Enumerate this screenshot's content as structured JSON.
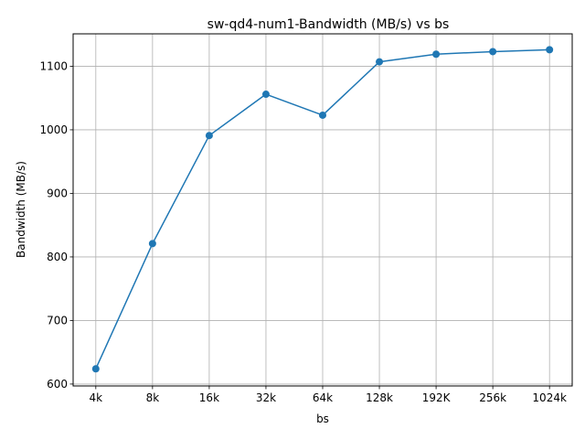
{
  "chart_data": {
    "type": "line",
    "title": "sw-qd4-num1-Bandwidth (MB/s) vs bs",
    "xlabel": "bs",
    "ylabel": "Bandwidth (MB/s)",
    "categories": [
      "4k",
      "8k",
      "16k",
      "32k",
      "64k",
      "128k",
      "192K",
      "256k",
      "1024k"
    ],
    "series": [
      {
        "values": [
          624,
          821,
          991,
          1056,
          1023,
          1107,
          1119,
          1123,
          1126
        ],
        "color": "#1f77b4",
        "marker": "circle"
      }
    ],
    "yticks": [
      600,
      700,
      800,
      900,
      1000,
      1100
    ],
    "ylim": [
      597,
      1151
    ],
    "grid": true,
    "legend": "none"
  }
}
